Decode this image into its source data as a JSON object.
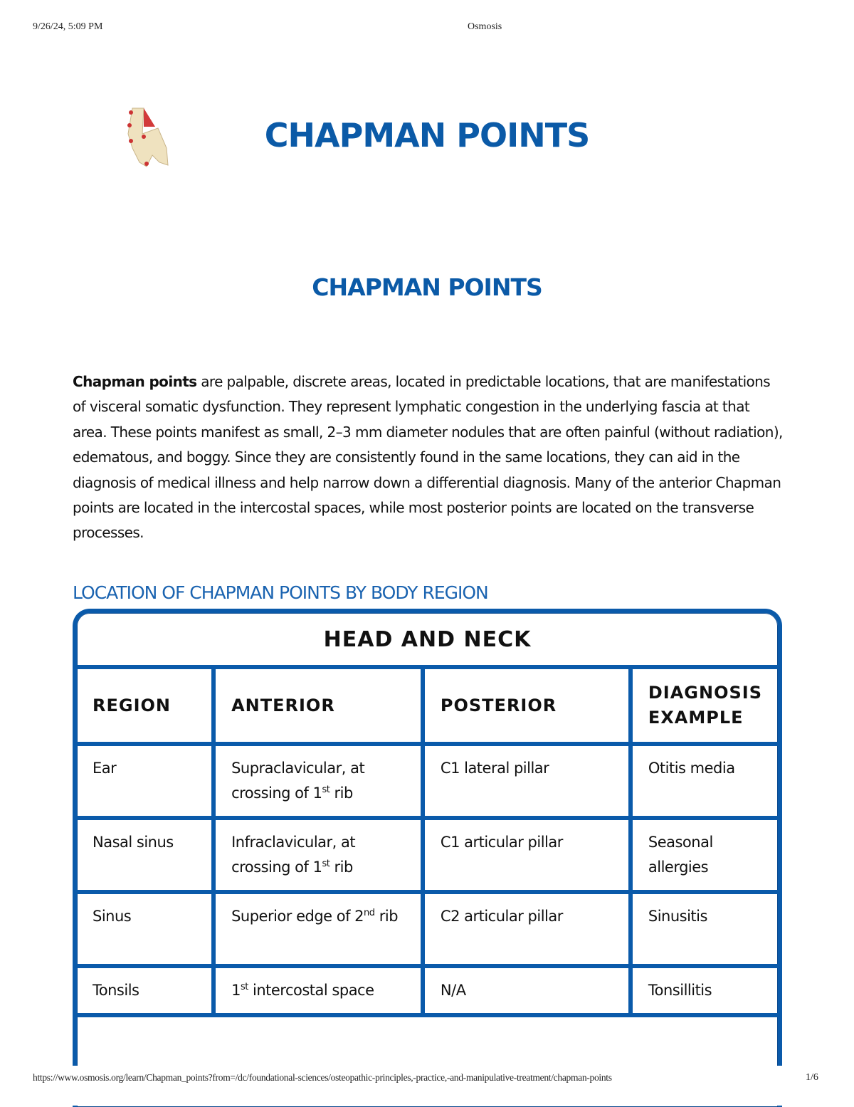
{
  "print_header": {
    "datetime": "9/26/24, 5:09 PM",
    "site": "Osmosis"
  },
  "title": "CHAPMAN POINTS",
  "subtitle": "CHAPMAN POINTS",
  "logo": "pelvis-spine-illustration",
  "intro": {
    "bold": "Chapman points",
    "text": " are palpable, discrete areas, located in predictable locations, that are manifestations of visceral somatic dysfunction. They represent lymphatic congestion in the underlying fascia at that area. These points manifest as small, 2–3 mm diameter nodules that are often painful (without radiation), edematous, and boggy. Since they are consistently found in the same locations, they can aid in the diagnosis of medical illness and help narrow down a differential diagnosis. Many of the anterior Chapman points are located in the intercostal spaces, while most posterior points are located on the transverse processes."
  },
  "section_heading": "LOCATION OF CHAPMAN POINTS BY BODY REGION",
  "table": {
    "caption": "HEAD AND NECK",
    "columns": [
      "REGION",
      "ANTERIOR",
      "POSTERIOR",
      "DIAGNOSIS EXAMPLE"
    ],
    "rows": [
      {
        "region": "Ear",
        "anterior": [
          "Supraclavicular, at crossing of 1",
          "st",
          " rib"
        ],
        "posterior": "C1 lateral pillar",
        "diagnosis": "Otitis media"
      },
      {
        "region": "Nasal sinus",
        "anterior": [
          "Infraclavicular, at crossing of 1",
          "st",
          " rib"
        ],
        "posterior": "C1 articular pillar",
        "diagnosis": "Seasonal allergies"
      },
      {
        "region": "Sinus",
        "anterior": [
          "Superior edge of 2",
          "nd",
          " rib"
        ],
        "posterior": "C2 articular pillar",
        "diagnosis": "Sinusitis"
      },
      {
        "region": "Tonsils",
        "anterior": [
          "1",
          "st",
          " intercostal space"
        ],
        "posterior": "N/A",
        "diagnosis": "Tonsillitis"
      }
    ]
  },
  "colors": {
    "brand_blue": "#0b5aa7",
    "table_border": "#0a5aaa"
  },
  "print_footer": {
    "url": "https://www.osmosis.org/learn/Chapman_points?from=/dc/foundational-sciences/osteopathic-principles,-practice,-and-manipulative-treatment/chapman-points",
    "page": "1/6"
  }
}
